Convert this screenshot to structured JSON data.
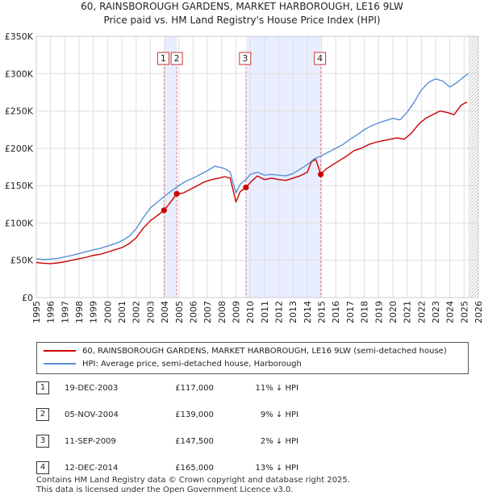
{
  "header": {
    "title": "60, RAINSBOROUGH GARDENS, MARKET HARBOROUGH, LE16 9LW",
    "subtitle": "Price paid vs. HM Land Registry's House Price Index (HPI)"
  },
  "colors": {
    "price_line": "#cc0000",
    "hpi_line": "#5b8fd6",
    "shade": "#e8eeff",
    "marker_line": "#e08080",
    "grid": "#dddddd"
  },
  "chart_data": {
    "type": "line",
    "title": "Price paid vs. HM Land Registry's House Price Index (HPI)",
    "xlabel": "",
    "ylabel": "",
    "xlim": [
      1995,
      2026
    ],
    "ylim": [
      0,
      350000
    ],
    "y_ticks": [
      {
        "value": 0,
        "label": "£0"
      },
      {
        "value": 50000,
        "label": "£50K"
      },
      {
        "value": 100000,
        "label": "£100K"
      },
      {
        "value": 150000,
        "label": "£150K"
      },
      {
        "value": 200000,
        "label": "£200K"
      },
      {
        "value": 250000,
        "label": "£250K"
      },
      {
        "value": 300000,
        "label": "£300K"
      },
      {
        "value": 350000,
        "label": "£350K"
      }
    ],
    "x_ticks": [
      "1995",
      "1996",
      "1997",
      "1998",
      "1999",
      "2000",
      "2001",
      "2002",
      "2003",
      "2004",
      "2005",
      "2006",
      "2007",
      "2008",
      "2009",
      "2010",
      "2011",
      "2012",
      "2013",
      "2014",
      "2015",
      "2016",
      "2017",
      "2018",
      "2019",
      "2020",
      "2021",
      "2022",
      "2023",
      "2024",
      "2025",
      "2026"
    ],
    "grid": true,
    "shaded_ranges": [
      [
        2003.96,
        2004.85
      ],
      [
        2009.7,
        2014.95
      ]
    ],
    "series": [
      {
        "name": "60, RAINSBOROUGH GARDENS, MARKET HARBOROUGH, LE16 9LW (semi-detached house)",
        "x": [
          1995.0,
          1995.5,
          1996.0,
          1996.5,
          1997.0,
          1997.5,
          1998.0,
          1998.5,
          1999.0,
          1999.5,
          2000.0,
          2000.5,
          2001.0,
          2001.5,
          2002.0,
          2002.5,
          2003.0,
          2003.5,
          2003.96,
          2004.3,
          2004.85,
          2005.3,
          2005.8,
          2006.3,
          2006.8,
          2007.3,
          2007.8,
          2008.2,
          2008.6,
          2009.0,
          2009.3,
          2009.7,
          2010.0,
          2010.5,
          2011.0,
          2011.5,
          2012.0,
          2012.5,
          2013.0,
          2013.5,
          2014.0,
          2014.3,
          2014.6,
          2014.95,
          2015.3,
          2015.8,
          2016.3,
          2016.8,
          2017.3,
          2017.8,
          2018.3,
          2018.8,
          2019.3,
          2019.8,
          2020.3,
          2020.8,
          2021.3,
          2021.8,
          2022.3,
          2022.8,
          2023.3,
          2023.8,
          2024.3,
          2024.8,
          2025.2
        ],
        "values": [
          47000,
          46000,
          45500,
          46500,
          48000,
          50000,
          52000,
          54000,
          56500,
          58000,
          61000,
          64000,
          67000,
          72000,
          80000,
          93000,
          103000,
          110000,
          117000,
          125000,
          139000,
          140000,
          145000,
          150000,
          155000,
          158000,
          160000,
          162000,
          160000,
          128000,
          142000,
          147500,
          154000,
          163000,
          158000,
          160000,
          158000,
          157000,
          160000,
          163000,
          168000,
          182000,
          185000,
          165000,
          172000,
          178000,
          184000,
          190000,
          197000,
          200000,
          205000,
          208000,
          210000,
          212000,
          214000,
          212000,
          220000,
          232000,
          240000,
          245000,
          250000,
          248000,
          245000,
          258000,
          262000
        ]
      },
      {
        "name": "HPI: Average price, semi-detached house, Harborough",
        "x": [
          1995.0,
          1995.5,
          1996.0,
          1996.5,
          1997.0,
          1997.5,
          1998.0,
          1998.5,
          1999.0,
          1999.5,
          2000.0,
          2000.5,
          2001.0,
          2001.5,
          2002.0,
          2002.5,
          2003.0,
          2003.5,
          2004.0,
          2004.5,
          2005.0,
          2005.5,
          2006.0,
          2006.5,
          2007.0,
          2007.5,
          2008.0,
          2008.3,
          2008.6,
          2009.0,
          2009.3,
          2009.7,
          2010.0,
          2010.5,
          2011.0,
          2011.5,
          2012.0,
          2012.5,
          2013.0,
          2013.5,
          2014.0,
          2014.5,
          2015.0,
          2015.5,
          2016.0,
          2016.5,
          2017.0,
          2017.5,
          2018.0,
          2018.5,
          2019.0,
          2019.5,
          2020.0,
          2020.5,
          2021.0,
          2021.5,
          2022.0,
          2022.5,
          2023.0,
          2023.5,
          2024.0,
          2024.5,
          2025.0,
          2025.3
        ],
        "values": [
          52000,
          51000,
          51500,
          52500,
          54500,
          56500,
          59000,
          61500,
          64000,
          66000,
          69000,
          72000,
          76000,
          82000,
          92000,
          107000,
          120000,
          128000,
          136000,
          143000,
          150000,
          156000,
          160000,
          165000,
          170000,
          176000,
          174000,
          172000,
          168000,
          140000,
          152000,
          158000,
          165000,
          168000,
          164000,
          165000,
          164000,
          163000,
          166000,
          172000,
          178000,
          186000,
          190000,
          195000,
          200000,
          205000,
          212000,
          218000,
          225000,
          230000,
          234000,
          237000,
          240000,
          238000,
          248000,
          262000,
          278000,
          288000,
          293000,
          290000,
          282000,
          288000,
          296000,
          300000
        ]
      }
    ],
    "sales": [
      {
        "label": "1",
        "x": 2003.96,
        "value": 117000
      },
      {
        "label": "2",
        "x": 2004.85,
        "value": 139000
      },
      {
        "label": "3",
        "x": 2009.7,
        "value": 147500
      },
      {
        "label": "4",
        "x": 2014.95,
        "value": 165000
      }
    ]
  },
  "legend": {
    "price_label": "60, RAINSBOROUGH GARDENS, MARKET HARBOROUGH, LE16 9LW (semi-detached house)",
    "hpi_label": "HPI: Average price, semi-detached house, Harborough"
  },
  "sales_table": [
    {
      "num": "1",
      "date": "19-DEC-2003",
      "price": "£117,000",
      "hpi": "11% ↓ HPI"
    },
    {
      "num": "2",
      "date": "05-NOV-2004",
      "price": "£139,000",
      "hpi": "9% ↓ HPI"
    },
    {
      "num": "3",
      "date": "11-SEP-2009",
      "price": "£147,500",
      "hpi": "2% ↓ HPI"
    },
    {
      "num": "4",
      "date": "12-DEC-2014",
      "price": "£165,000",
      "hpi": "13% ↓ HPI"
    }
  ],
  "footer": {
    "line1": "Contains HM Land Registry data © Crown copyright and database right 2025.",
    "line2": "This data is licensed under the Open Government Licence v3.0."
  }
}
